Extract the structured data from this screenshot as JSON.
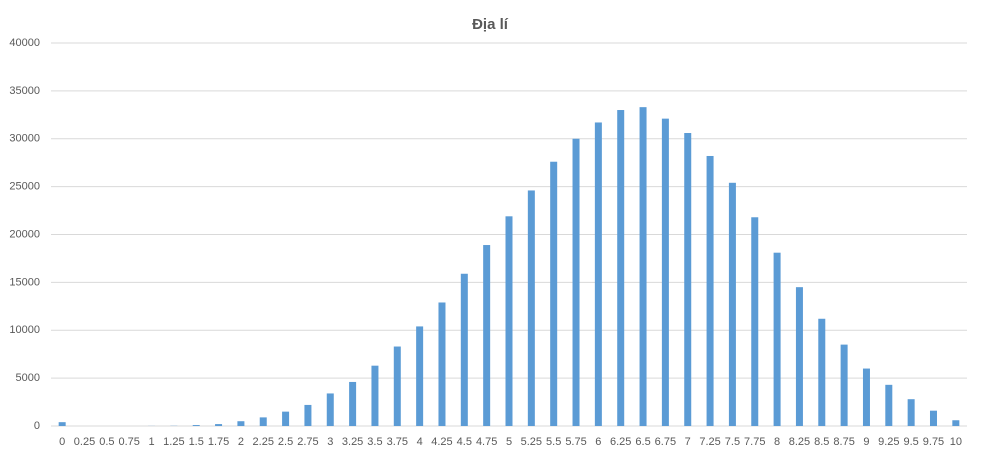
{
  "chart_data": {
    "type": "bar",
    "title": "Địa lí",
    "categories": [
      "0",
      "0.25",
      "0.5",
      "0.75",
      "1",
      "1.25",
      "1.5",
      "1.75",
      "2",
      "2.25",
      "2.5",
      "2.75",
      "3",
      "3.25",
      "3.5",
      "3.75",
      "4",
      "4.25",
      "4.5",
      "4.75",
      "5",
      "5.25",
      "5.5",
      "5.75",
      "6",
      "6.25",
      "6.5",
      "6.75",
      "7",
      "7.25",
      "7.5",
      "7.75",
      "8",
      "8.25",
      "8.5",
      "8.75",
      "9",
      "9.25",
      "9.5",
      "9.75",
      "10"
    ],
    "values": [
      400,
      0,
      0,
      0,
      10,
      20,
      100,
      200,
      500,
      900,
      1500,
      2200,
      3400,
      4600,
      6300,
      8300,
      10400,
      12900,
      15900,
      18900,
      21900,
      24600,
      27600,
      30000,
      31700,
      33000,
      33300,
      32100,
      30600,
      28200,
      25400,
      21800,
      18100,
      14500,
      11200,
      8500,
      6000,
      4300,
      2800,
      1600,
      600
    ],
    "color": "#5b9bd5",
    "ylim": [
      0,
      40000
    ],
    "yticks": [
      0,
      5000,
      10000,
      15000,
      20000,
      25000,
      30000,
      35000,
      40000
    ],
    "grid": true
  }
}
